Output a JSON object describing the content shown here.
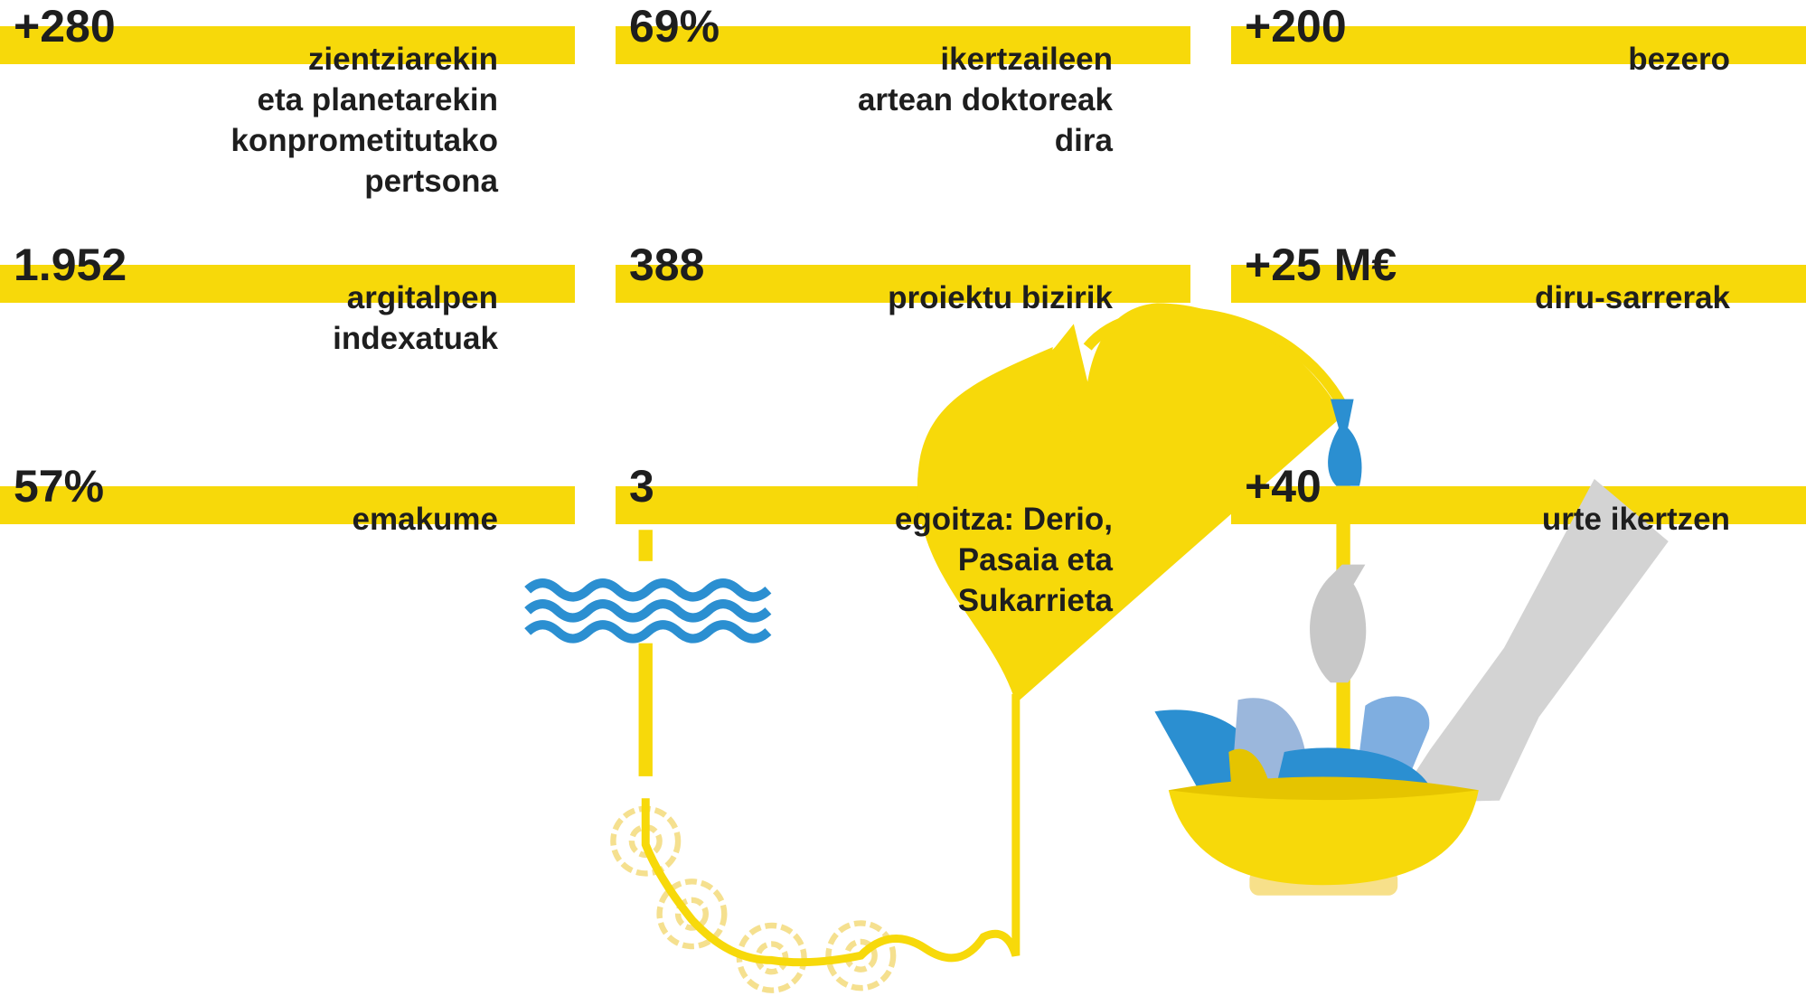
{
  "stats": [
    {
      "number": "+280",
      "lines": [
        "zientziarekin",
        "eta planetarekin",
        "konprometitutako",
        "pertsona"
      ]
    },
    {
      "number": "69%",
      "lines": [
        "ikertzaileen",
        "artean doktoreak",
        "dira"
      ]
    },
    {
      "number": "+200",
      "lines": [
        "bezero"
      ]
    },
    {
      "number": "1.952",
      "lines": [
        "argitalpen",
        "indexatuak"
      ]
    },
    {
      "number": "388",
      "lines": [
        "proiektu bizirik"
      ]
    },
    {
      "number": "+25 M€",
      "lines": [
        "diru-sarrerak"
      ]
    },
    {
      "number": "57%",
      "lines": [
        "emakume"
      ]
    },
    {
      "number": "3",
      "lines": [
        "egoitza: Derio,",
        "Pasaia eta",
        "Sukarrieta"
      ]
    },
    {
      "number": "+40",
      "lines": [
        "urte ikertzen"
      ]
    }
  ]
}
